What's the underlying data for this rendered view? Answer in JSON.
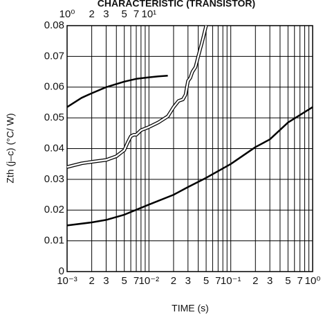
{
  "chart_data": {
    "type": "line",
    "title": "CHARACTERISTIC (TRANSISTOR)",
    "xlabel": "TIME (s)",
    "ylabel": "Zth (j–c) (°C/ W)",
    "xscale": "log",
    "xlim": [
      0.001,
      1
    ],
    "ylim": [
      0,
      0.08
    ],
    "yticks": [
      0,
      0.01,
      0.02,
      0.03,
      0.04,
      0.05,
      0.06,
      0.07,
      0.08
    ],
    "xticks": [
      {
        "value": 0.001,
        "label": "10⁻³"
      },
      {
        "value": 0.002,
        "label": "2"
      },
      {
        "value": 0.003,
        "label": "3"
      },
      {
        "value": 0.005,
        "label": "5"
      },
      {
        "value": 0.007,
        "label": "7"
      },
      {
        "value": 0.01,
        "label": "10⁻²"
      },
      {
        "value": 0.02,
        "label": "2"
      },
      {
        "value": 0.03,
        "label": "3"
      },
      {
        "value": 0.05,
        "label": "5"
      },
      {
        "value": 0.07,
        "label": "7"
      },
      {
        "value": 0.1,
        "label": "10⁻¹"
      },
      {
        "value": 0.2,
        "label": "2"
      },
      {
        "value": 0.3,
        "label": "3"
      },
      {
        "value": 0.5,
        "label": "5"
      },
      {
        "value": 0.7,
        "label": "7"
      },
      {
        "value": 1,
        "label": "10⁰"
      }
    ],
    "xgrid_minor": [
      0.004,
      0.006,
      0.008,
      0.009,
      0.04,
      0.06,
      0.08,
      0.09,
      0.4,
      0.6,
      0.8,
      0.9
    ],
    "x2scale": "log",
    "x2lim": [
      1,
      1000
    ],
    "x2ticks": [
      {
        "value": 1,
        "label": "10⁰"
      },
      2,
      3,
      5,
      7,
      {
        "value": 10,
        "label": "10¹"
      }
    ],
    "grid": true,
    "series": [
      {
        "color": "#000000",
        "style": "solid",
        "x": [
          0.001,
          0.0015,
          0.002,
          0.003,
          0.005,
          0.007,
          0.01,
          0.013,
          0.017
        ],
        "values": [
          0.0535,
          0.0565,
          0.058,
          0.06,
          0.0618,
          0.0627,
          0.0632,
          0.0635,
          0.0637
        ]
      },
      {
        "color": "#000000",
        "style": "double",
        "x": [
          0.001,
          0.0015,
          0.002,
          0.003,
          0.004,
          0.005,
          0.0055,
          0.006,
          0.0065,
          0.007,
          0.008,
          0.01,
          0.013,
          0.017,
          0.02,
          0.023,
          0.026,
          0.028,
          0.03,
          0.032,
          0.034,
          0.037,
          0.04,
          0.045,
          0.05
        ],
        "values": [
          0.034,
          0.0352,
          0.0357,
          0.0363,
          0.0375,
          0.0395,
          0.042,
          0.044,
          0.0445,
          0.0445,
          0.046,
          0.047,
          0.0485,
          0.0505,
          0.0535,
          0.0555,
          0.056,
          0.0575,
          0.062,
          0.063,
          0.065,
          0.0665,
          0.07,
          0.075,
          0.08
        ]
      },
      {
        "color": "#000000",
        "style": "solid",
        "x": [
          0.001,
          0.002,
          0.003,
          0.005,
          0.01,
          0.02,
          0.03,
          0.05,
          0.1,
          0.2,
          0.3,
          0.5,
          1
        ],
        "values": [
          0.015,
          0.016,
          0.0168,
          0.0185,
          0.0218,
          0.025,
          0.0275,
          0.0305,
          0.035,
          0.0405,
          0.043,
          0.0485,
          0.0535
        ]
      }
    ]
  }
}
